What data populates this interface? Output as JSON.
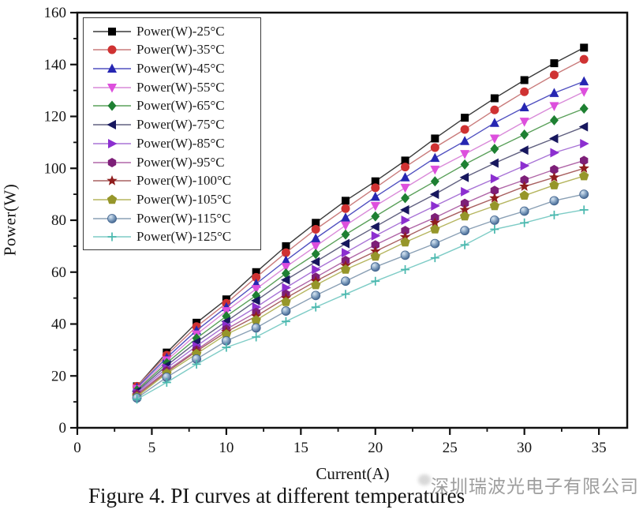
{
  "figure": {
    "caption": "Figure 4. PI curves at different temperatures",
    "watermark": "深圳瑞波光电子有限公司"
  },
  "chart_data": {
    "type": "line",
    "title": "",
    "xlabel": "Current(A)",
    "ylabel": "Power(W)",
    "xlim": [
      0,
      36.9
    ],
    "ylim": [
      0,
      160
    ],
    "x_major_ticks": [
      0,
      5,
      10,
      15,
      20,
      25,
      30,
      35
    ],
    "x_minor_step": 2.5,
    "y_major_ticks": [
      0,
      20,
      40,
      60,
      80,
      100,
      120,
      140,
      160
    ],
    "y_minor_step": 10,
    "grid": false,
    "legend_position": "top-left",
    "x": [
      4,
      6,
      8,
      10,
      12,
      14,
      16,
      18,
      20,
      22,
      24,
      26,
      28,
      30,
      32,
      34
    ],
    "series": [
      {
        "name": "Power(W)-25°C",
        "marker": "square",
        "color": "#000000",
        "line_color": "#3a3a3a",
        "values": [
          16,
          29,
          40.5,
          49.5,
          60,
          70,
          79,
          87.5,
          95,
          103,
          111.5,
          119.5,
          127,
          134,
          140.5,
          146.5
        ]
      },
      {
        "name": "Power(W)-35°C",
        "marker": "circle",
        "color": "#cf3232",
        "line_color": "#c97b7b",
        "values": [
          16,
          28,
          39,
          48,
          58,
          67.5,
          76.5,
          84.5,
          92.5,
          100.5,
          108,
          115,
          122.5,
          129.5,
          136,
          142
        ]
      },
      {
        "name": "Power(W)-45°C",
        "marker": "triangle-up",
        "color": "#2626b2",
        "line_color": "#5050c0",
        "values": [
          15.5,
          27,
          37.5,
          46.5,
          55.5,
          64.5,
          73,
          81,
          89,
          96.5,
          104,
          110.5,
          117.5,
          123.5,
          129,
          133.5
        ]
      },
      {
        "name": "Power(W)-55°C",
        "marker": "triangle-down",
        "color": "#dd4fdd",
        "line_color": "#d98ad9",
        "values": [
          15,
          26,
          36,
          45,
          53.5,
          62,
          70,
          78,
          85.5,
          92.5,
          99.5,
          105.5,
          111.5,
          118,
          124,
          129.5
        ]
      },
      {
        "name": "Power(W)-65°C",
        "marker": "diamond",
        "color": "#1e8032",
        "line_color": "#5aa05a",
        "values": [
          14.5,
          25,
          34.5,
          43,
          51,
          59.5,
          67,
          74.5,
          81.5,
          88.5,
          95,
          101.5,
          107.5,
          113,
          118.5,
          123
        ]
      },
      {
        "name": "Power(W)-75°C",
        "marker": "triangle-left",
        "color": "#17175e",
        "line_color": "#606080",
        "values": [
          14,
          24,
          33,
          41,
          49,
          57,
          64,
          71,
          77.5,
          84,
          90,
          96.5,
          102,
          107,
          111.5,
          116
        ]
      },
      {
        "name": "Power(W)-85°C",
        "marker": "triangle-right",
        "color": "#8c2fd0",
        "line_color": "#a873d6",
        "values": [
          13.5,
          23,
          31.5,
          39.5,
          46.5,
          54,
          61,
          67.5,
          74,
          80,
          85.5,
          91,
          96,
          101,
          106,
          109.5
        ]
      },
      {
        "name": "Power(W)-95°C",
        "marker": "hexagon",
        "color": "#7d1f78",
        "line_color": "#b066a8",
        "values": [
          13,
          22,
          30,
          38,
          44.5,
          51.5,
          58,
          64.5,
          70.5,
          76,
          81,
          86.5,
          91.5,
          95.5,
          99.5,
          103
        ]
      },
      {
        "name": "Power(W)-100°C",
        "marker": "star",
        "color": "#8f1d1d",
        "line_color": "#a86060",
        "values": [
          12.5,
          21.5,
          29.5,
          37,
          43,
          50,
          56.5,
          62.5,
          68,
          73.5,
          79,
          84,
          88.5,
          93,
          96.5,
          100
        ]
      },
      {
        "name": "Power(W)-105°C",
        "marker": "pentagon",
        "color": "#96962a",
        "line_color": "#b5b55e",
        "values": [
          12,
          21,
          28.5,
          36,
          41.5,
          48.5,
          55,
          61,
          66,
          71.5,
          76.5,
          81.5,
          85.5,
          89.5,
          93.5,
          97
        ]
      },
      {
        "name": "Power(W)-115°C",
        "marker": "sphere",
        "color": "#5c7ea3",
        "line_color": "#8aa0b5",
        "values": [
          11.5,
          19.5,
          26.5,
          33.5,
          38.5,
          45,
          51,
          56.5,
          62,
          66.5,
          71,
          76,
          80,
          83.5,
          87.5,
          90
        ]
      },
      {
        "name": "Power(W)-125°C",
        "marker": "plus",
        "color": "#49b8ae",
        "line_color": "#7eccc6",
        "values": [
          11,
          17.5,
          24.5,
          31,
          35,
          41,
          46.5,
          51.5,
          56.5,
          61,
          65.5,
          70.5,
          76.5,
          79,
          82,
          84
        ]
      }
    ]
  }
}
